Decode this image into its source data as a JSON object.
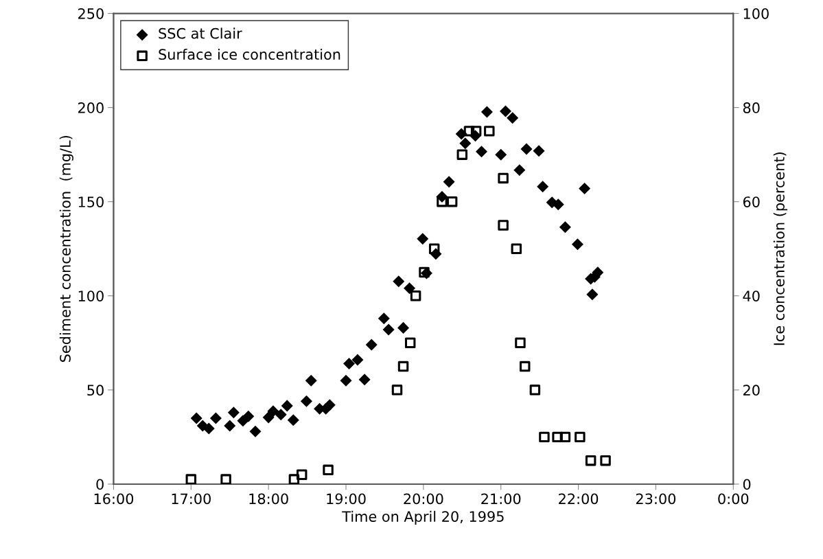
{
  "chart_data": {
    "type": "scatter",
    "xlabel": "Time on April 20, 1995",
    "ylabel": "Sediment concentration  (mg/L)",
    "y2label": "Ice concentration (percent)",
    "xlim": [
      16,
      24
    ],
    "xticks": [
      {
        "value": 16,
        "label": "16:00"
      },
      {
        "value": 17,
        "label": "17:00"
      },
      {
        "value": 18,
        "label": "18:00"
      },
      {
        "value": 19,
        "label": "19:00"
      },
      {
        "value": 20,
        "label": "20:00"
      },
      {
        "value": 21,
        "label": "21:00"
      },
      {
        "value": 22,
        "label": "22:00"
      },
      {
        "value": 23,
        "label": "23:00"
      },
      {
        "value": 24,
        "label": "0:00"
      }
    ],
    "ylim": [
      0,
      250
    ],
    "yticks": [
      0,
      50,
      100,
      150,
      200,
      250
    ],
    "y2lim": [
      0,
      100
    ],
    "y2ticks": [
      0,
      20,
      40,
      60,
      80,
      100
    ],
    "grid": false,
    "legend": "top left",
    "series": [
      {
        "name": "SSC at Clair",
        "color": "#000000",
        "marker": "diamond",
        "x": [
          17.07,
          17.15,
          17.23,
          17.32,
          17.5,
          17.55,
          17.67,
          17.74,
          17.83,
          18.0,
          18.06,
          18.16,
          18.24,
          18.32,
          18.49,
          18.55,
          18.66,
          18.74,
          18.79,
          19.0,
          19.04,
          19.15,
          19.24,
          19.33,
          19.49,
          19.55,
          19.68,
          19.74,
          19.82,
          19.99,
          20.04,
          20.16,
          20.24,
          20.33,
          20.49,
          20.54,
          20.67,
          20.75,
          20.82,
          21.0,
          21.06,
          21.15,
          21.24,
          21.33,
          21.49,
          21.54,
          21.66,
          21.74,
          21.83,
          21.99,
          22.08,
          22.16,
          22.18,
          22.21,
          22.25
        ],
        "values": [
          35,
          31,
          29.5,
          35,
          31,
          38,
          33.6,
          36,
          28,
          35.4,
          38.7,
          36.9,
          41.6,
          34,
          44,
          55,
          40,
          40,
          42,
          55,
          64,
          66,
          55.5,
          74,
          88,
          82,
          107.7,
          83,
          104,
          130.3,
          112,
          122.3,
          152.6,
          160.6,
          186,
          181,
          185,
          176.6,
          197.7,
          175,
          198,
          194.5,
          166.8,
          178,
          177,
          158,
          149.6,
          148.5,
          136.5,
          127.4,
          157,
          109,
          100.7,
          110,
          112.4
        ]
      },
      {
        "name": "Surface ice concentration",
        "color": "#000000",
        "marker": "square",
        "axis": "y2",
        "x": [
          17.0,
          17.45,
          18.33,
          18.43,
          18.77,
          19.66,
          19.74,
          19.83,
          19.9,
          20.01,
          20.14,
          20.24,
          20.37,
          20.5,
          20.59,
          20.68,
          20.85,
          21.03,
          21.03,
          21.2,
          21.25,
          21.31,
          21.44,
          21.56,
          21.73,
          21.83,
          22.02,
          22.16,
          22.35
        ],
        "values": [
          1,
          1,
          1,
          2,
          3,
          20,
          25,
          30,
          40,
          45,
          50,
          60,
          60,
          70,
          75,
          75,
          75,
          65,
          55,
          50,
          30,
          25,
          20,
          10,
          10,
          10,
          10,
          5,
          5
        ]
      }
    ]
  }
}
